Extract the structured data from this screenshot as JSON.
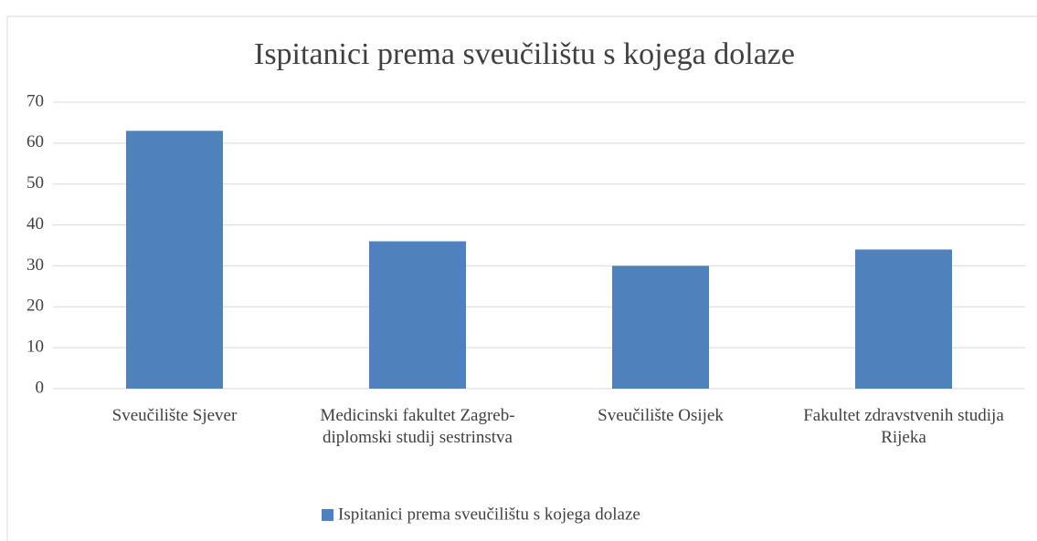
{
  "chart_data": {
    "type": "bar",
    "title": "Ispitanici prema sveučilištu s kojega dolaze",
    "categories": [
      "Sveučilište Sjever",
      "Medicinski fakultet Zagreb-diplomski studij sestrinstva",
      "Sveučilište Osijek",
      "Fakultet zdravstvenih studija Rijeka"
    ],
    "series": [
      {
        "name": "Ispitanici prema sveučilištu s kojega dolaze",
        "color": "#4f81bd",
        "values": [
          63,
          36,
          30,
          34
        ]
      }
    ],
    "ylim": [
      0,
      70
    ],
    "yticks": [
      0,
      10,
      20,
      30,
      40,
      50,
      60,
      70
    ],
    "grid": true,
    "legend": "bottom"
  }
}
